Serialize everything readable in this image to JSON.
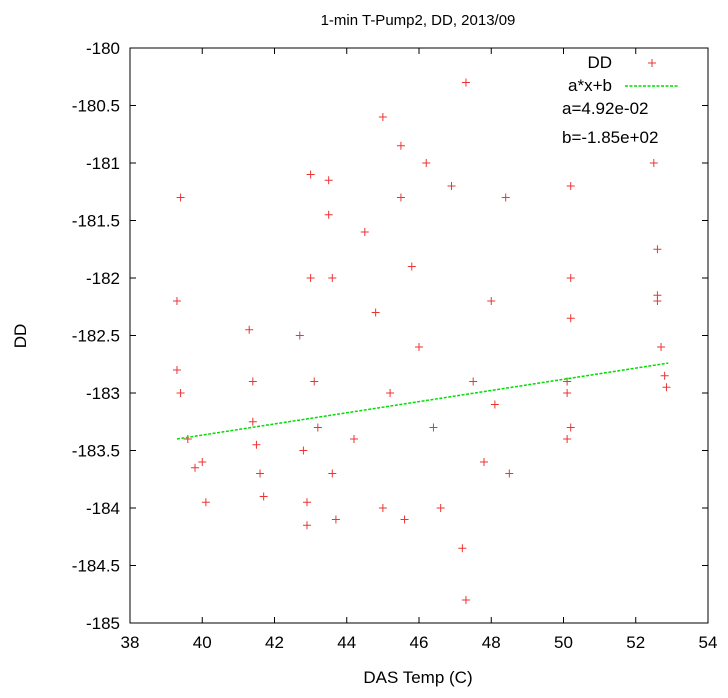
{
  "chart_data": {
    "type": "scatter",
    "title": "1-min T-Pump2, DD, 2013/09",
    "xlabel": "DAS Temp (C)",
    "ylabel": "DD",
    "xlim": [
      38,
      54
    ],
    "ylim": [
      -185,
      -180
    ],
    "x_ticks": [
      38,
      40,
      42,
      44,
      46,
      48,
      50,
      52,
      54
    ],
    "y_ticks": [
      -185,
      -184.5,
      -184,
      -183.5,
      -183,
      -182.5,
      -182,
      -181.5,
      -181,
      -180.5,
      -180
    ],
    "x_tick_labels": [
      "38",
      "40",
      "42",
      "44",
      "46",
      "48",
      "50",
      "52",
      "54"
    ],
    "y_tick_labels": [
      "-185",
      "-184.5",
      "-184",
      "-183.5",
      "-183",
      "-182.5",
      "-182",
      "-181.5",
      "-181",
      "-180.5",
      "-180"
    ],
    "grid": false,
    "legend_position": "top-right",
    "series": [
      {
        "name": "DD",
        "kind": "scatter",
        "marker": "plus",
        "color": "#ee3333",
        "points": [
          [
            39.4,
            -181.3
          ],
          [
            39.3,
            -182.2
          ],
          [
            39.3,
            -182.8
          ],
          [
            39.4,
            -183.0
          ],
          [
            39.6,
            -183.4
          ],
          [
            39.8,
            -183.65
          ],
          [
            40.0,
            -183.6
          ],
          [
            40.1,
            -183.95
          ],
          [
            41.3,
            -182.45
          ],
          [
            41.4,
            -182.9
          ],
          [
            41.4,
            -183.25
          ],
          [
            41.5,
            -183.45
          ],
          [
            41.6,
            -183.7
          ],
          [
            41.7,
            -183.9
          ],
          [
            42.7,
            -182.5
          ],
          [
            42.8,
            -183.5
          ],
          [
            42.9,
            -183.95
          ],
          [
            42.9,
            -184.15
          ],
          [
            43.0,
            -181.1
          ],
          [
            43.0,
            -182.0
          ],
          [
            43.1,
            -182.9
          ],
          [
            43.2,
            -183.3
          ],
          [
            43.5,
            -181.15
          ],
          [
            43.5,
            -181.45
          ],
          [
            43.6,
            -182.0
          ],
          [
            43.6,
            -183.7
          ],
          [
            43.7,
            -184.1
          ],
          [
            44.2,
            -183.4
          ],
          [
            44.5,
            -181.6
          ],
          [
            44.8,
            -182.3
          ],
          [
            45.0,
            -180.6
          ],
          [
            45.0,
            -184.0
          ],
          [
            45.2,
            -183.0
          ],
          [
            45.5,
            -180.85
          ],
          [
            45.5,
            -181.3
          ],
          [
            45.6,
            -184.1
          ],
          [
            45.8,
            -181.9
          ],
          [
            46.0,
            -182.6
          ],
          [
            46.2,
            -181.0
          ],
          [
            46.4,
            -183.3
          ],
          [
            46.6,
            -184.0
          ],
          [
            46.9,
            -181.2
          ],
          [
            47.2,
            -184.35
          ],
          [
            47.3,
            -180.3
          ],
          [
            47.3,
            -184.8
          ],
          [
            47.5,
            -182.9
          ],
          [
            47.8,
            -183.6
          ],
          [
            48.0,
            -182.2
          ],
          [
            48.1,
            -183.1
          ],
          [
            48.4,
            -181.3
          ],
          [
            48.5,
            -183.7
          ],
          [
            50.2,
            -181.2
          ],
          [
            50.2,
            -182.0
          ],
          [
            50.2,
            -182.35
          ],
          [
            50.1,
            -182.9
          ],
          [
            50.1,
            -183.0
          ],
          [
            50.2,
            -183.3
          ],
          [
            50.1,
            -183.4
          ],
          [
            52.5,
            -181.0
          ],
          [
            52.6,
            -181.75
          ],
          [
            52.6,
            -182.15
          ],
          [
            52.7,
            -182.6
          ],
          [
            52.8,
            -182.85
          ],
          [
            52.85,
            -182.95
          ],
          [
            52.6,
            -182.2
          ]
        ]
      },
      {
        "name": "a*x+b",
        "kind": "line",
        "color": "#00dd00",
        "dashed": true,
        "fit": {
          "a": 0.0492,
          "b": -185.0,
          "x_range": [
            39.3,
            52.9
          ],
          "y_range": [
            -183.4,
            -182.74
          ]
        }
      }
    ],
    "annotations": [
      "a=4.92e-02",
      "b=-1.85e+02"
    ]
  }
}
